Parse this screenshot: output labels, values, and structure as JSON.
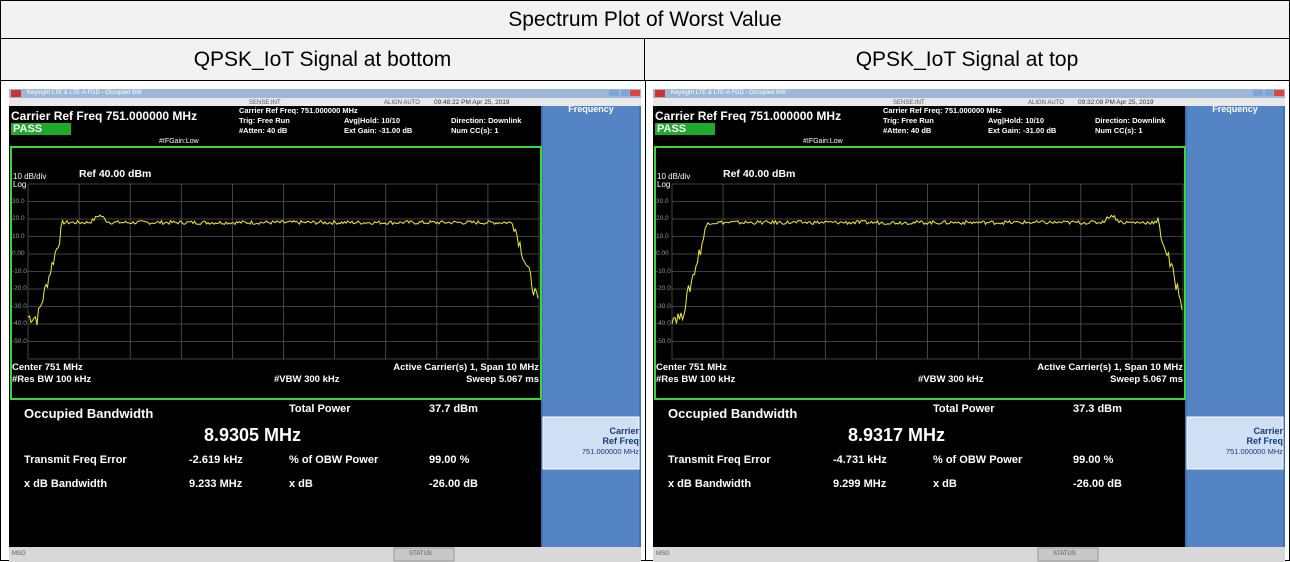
{
  "title": "Spectrum Plot of Worst Value",
  "columns": [
    {
      "heading": "QPSK_IoT Signal at bottom",
      "screen": {
        "window_title": "Keysight LTE & LTE-A FDD - Occupied BW",
        "sense": "SENSE:INT",
        "align": "ALIGN AUTO",
        "time": "09:48:22 PM Apr 25, 2019",
        "carrier_ref": "Carrier Ref Freq 751.000000 MHz",
        "pass": "PASS",
        "if_gain": "#IFGain:Low",
        "p1": "Carrier Ref Freq: 751.000000 MHz",
        "p2": "Trig: Free Run",
        "p3": "#Atten: 40 dB",
        "p4": "Avg|Hold: 10/10",
        "p5": "Ext Gain: -31.00 dB",
        "p6": "Direction: Downlink",
        "p7": "Num CC(s): 1",
        "scale": "10 dB/div",
        "log": "Log",
        "ref": "Ref 40.00 dBm",
        "y_labels": [
          "30.0",
          "20.0",
          "10.0",
          "0.00",
          "-10.0",
          "-20.0",
          "-30.0",
          "-40.0",
          "-50.0"
        ],
        "center": "Center 751 MHz",
        "res_bw": "#Res BW 100 kHz",
        "vbw": "#VBW 300 kHz",
        "span": "Active Carrier(s) 1, Span 10 MHz",
        "sweep": "Sweep 5.067 ms",
        "obw_label": "Occupied Bandwidth",
        "obw": "8.9305 MHz",
        "tp_label": "Total Power",
        "tp": "37.7 dBm",
        "tfe_label": "Transmit Freq Error",
        "tfe": "-2.619 kHz",
        "pct_label": "% of OBW Power",
        "pct": "99.00 %",
        "xbw_label": "x dB Bandwidth",
        "xbw": "9.233 MHz",
        "xdb_label": "x dB",
        "xdb": "-26.00 dB",
        "msg": "MSG",
        "status": "STATUS",
        "menu": "Frequency",
        "key1": "Carrier",
        "key2": "Ref Freq",
        "key3": "751.000000 MHz"
      }
    },
    {
      "heading": "QPSK_IoT Signal at top",
      "screen": {
        "window_title": "Keysight LTE & LTE-A FDD - Occupied BW",
        "sense": "SENSE:INT",
        "align": "ALIGN AUTO",
        "time": "09:32:09 PM Apr 25, 2019",
        "carrier_ref": "Carrier Ref Freq 751.000000 MHz",
        "pass": "PASS",
        "if_gain": "#IFGain:Low",
        "p1": "Carrier Ref Freq: 751.000000 MHz",
        "p2": "Trig: Free Run",
        "p3": "#Atten: 40 dB",
        "p4": "Avg|Hold: 10/10",
        "p5": "Ext Gain: -31.00 dB",
        "p6": "Direction: Downlink",
        "p7": "Num CC(s): 1",
        "scale": "10 dB/div",
        "log": "Log",
        "ref": "Ref 40.00 dBm",
        "y_labels": [
          "30.0",
          "20.0",
          "10.0",
          "0.00",
          "-10.0",
          "-20.0",
          "-30.0",
          "-40.0",
          "-50.0"
        ],
        "center": "Center 751 MHz",
        "res_bw": "#Res BW 100 kHz",
        "vbw": "#VBW 300 kHz",
        "span": "Active Carrier(s) 1, Span 10 MHz",
        "sweep": "Sweep 5.067 ms",
        "obw_label": "Occupied Bandwidth",
        "obw": "8.9317 MHz",
        "tp_label": "Total Power",
        "tp": "37.3 dBm",
        "tfe_label": "Transmit Freq Error",
        "tfe": "-4.731 kHz",
        "pct_label": "% of OBW Power",
        "pct": "99.00 %",
        "xbw_label": "x dB Bandwidth",
        "xbw": "9.299 MHz",
        "xdb_label": "x dB",
        "xdb": "-26.00 dB",
        "msg": "MSG",
        "status": "STATUS",
        "menu": "Frequency",
        "key1": "Carrier",
        "key2": "Ref Freq",
        "key3": "751.000000 MHz"
      }
    }
  ]
}
